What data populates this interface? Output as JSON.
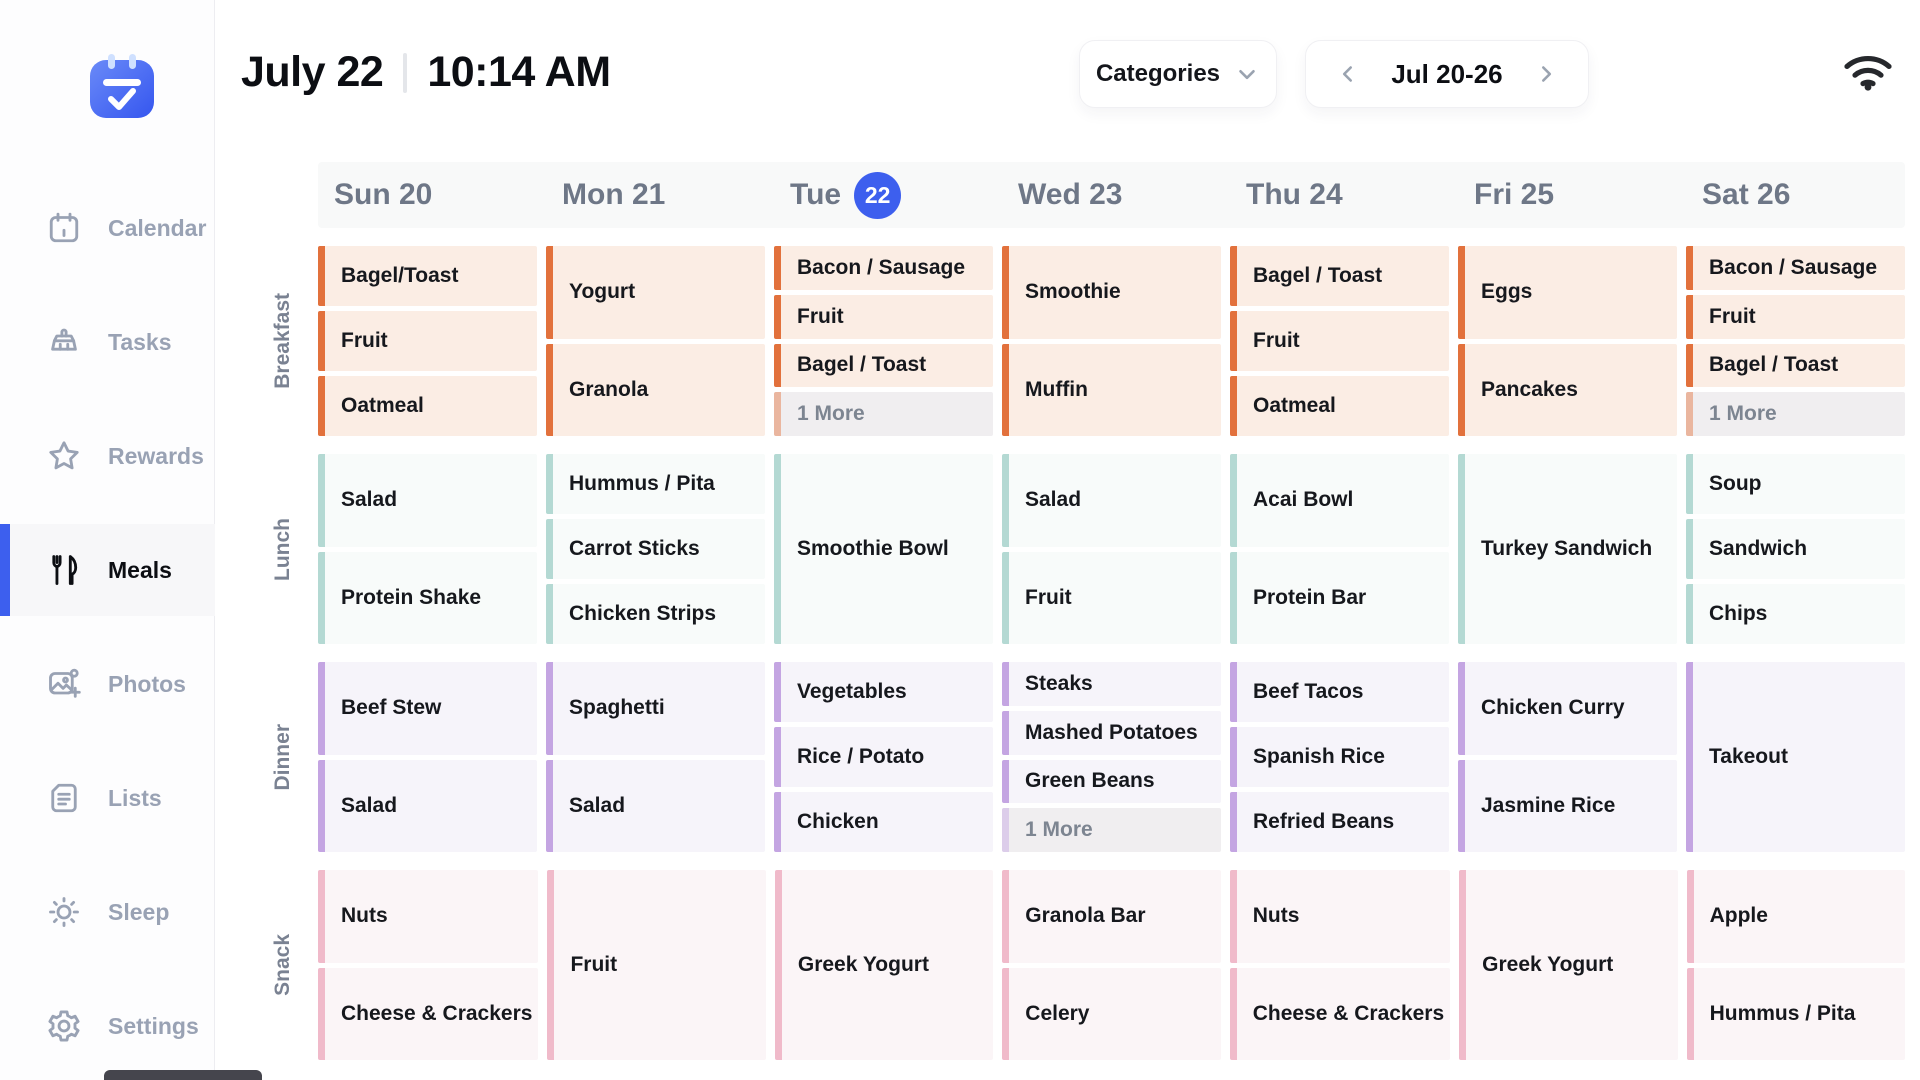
{
  "header": {
    "date": "July 22",
    "time": "10:14 AM",
    "categories_label": "Categories",
    "categories_icon": "chevron-down-icon",
    "week_label": "Jul 20-26",
    "prev_icon": "chevron-left-icon",
    "next_icon": "chevron-right-icon",
    "status_icon": "wifi-icon"
  },
  "colors": {
    "accent_blue": "#3D5FEE",
    "breakfast_accent": "#E2713C",
    "breakfast_bg": "#FBEDE4",
    "lunch_accent": "#B4D9D3",
    "lunch_bg": "#F8FBFA",
    "dinner_accent": "#C4A5E2",
    "dinner_bg": "#F6F4FA",
    "snack_accent": "#F0BACA",
    "snack_bg": "#FBF5F7"
  },
  "sidebar": {
    "logo_icon": "calendar-check-logo",
    "items": [
      {
        "label": "Calendar",
        "icon": "calendar-icon",
        "selected": false
      },
      {
        "label": "Tasks",
        "icon": "broom-icon",
        "selected": false
      },
      {
        "label": "Rewards",
        "icon": "star-icon",
        "selected": false
      },
      {
        "label": "Meals",
        "icon": "cutlery-icon",
        "selected": true
      },
      {
        "label": "Photos",
        "icon": "photo-add-icon",
        "selected": false
      },
      {
        "label": "Lists",
        "icon": "document-icon",
        "selected": false
      },
      {
        "label": "Sleep",
        "icon": "sun-icon",
        "selected": false
      },
      {
        "label": "Settings",
        "icon": "gear-icon",
        "selected": false
      }
    ]
  },
  "week": {
    "days": [
      {
        "label": "Sun 20"
      },
      {
        "label": "Mon 21"
      },
      {
        "label": "Tue",
        "badge": "22"
      },
      {
        "label": "Wed 23"
      },
      {
        "label": "Thu 24"
      },
      {
        "label": "Fri 25"
      },
      {
        "label": "Sat 26"
      }
    ],
    "rows": [
      {
        "label": "Breakfast",
        "accent": "#E2713C",
        "bg": "#FBEDE4",
        "cells": [
          [
            "Bagel/Toast",
            "Fruit",
            "Oatmeal"
          ],
          [
            "Yogurt",
            "Granola"
          ],
          [
            "Bacon / Sausage",
            "Fruit",
            "Bagel / Toast",
            "1 More"
          ],
          [
            "Smoothie",
            "Muffin"
          ],
          [
            "Bagel / Toast",
            "Fruit",
            "Oatmeal"
          ],
          [
            "Eggs",
            "Pancakes"
          ],
          [
            "Bacon / Sausage",
            "Fruit",
            "Bagel / Toast",
            "1 More"
          ]
        ]
      },
      {
        "label": "Lunch",
        "accent": "#B4D9D3",
        "bg": "#F8FBFA",
        "cells": [
          [
            "Salad",
            "Protein Shake"
          ],
          [
            "Hummus / Pita",
            "Carrot Sticks",
            "Chicken Strips"
          ],
          [
            "Smoothie Bowl"
          ],
          [
            "Salad",
            "Fruit"
          ],
          [
            "Acai Bowl",
            "Protein Bar"
          ],
          [
            "Turkey Sandwich"
          ],
          [
            "Soup",
            "Sandwich",
            "Chips"
          ]
        ]
      },
      {
        "label": "Dinner",
        "accent": "#C4A5E2",
        "bg": "#F6F4FA",
        "cells": [
          [
            "Beef Stew",
            "Salad"
          ],
          [
            "Spaghetti",
            "Salad"
          ],
          [
            "Vegetables",
            "Rice / Potato",
            "Chicken"
          ],
          [
            "Steaks",
            "Mashed Potatoes",
            "Green Beans",
            "1 More"
          ],
          [
            "Beef Tacos",
            "Spanish Rice",
            "Refried Beans"
          ],
          [
            "Chicken Curry",
            "Jasmine Rice"
          ],
          [
            "Takeout"
          ]
        ]
      },
      {
        "label": "Snack",
        "accent": "#F0BACA",
        "bg": "#FBF5F7",
        "cells": [
          [
            "Nuts",
            "Cheese & Crackers"
          ],
          [
            "Fruit"
          ],
          [
            "Greek Yogurt"
          ],
          [
            "Granola Bar",
            "Celery"
          ],
          [
            "Nuts",
            "Cheese & Crackers"
          ],
          [
            "Greek Yogurt"
          ],
          [
            "Apple",
            "Hummus / Pita"
          ]
        ]
      }
    ]
  }
}
